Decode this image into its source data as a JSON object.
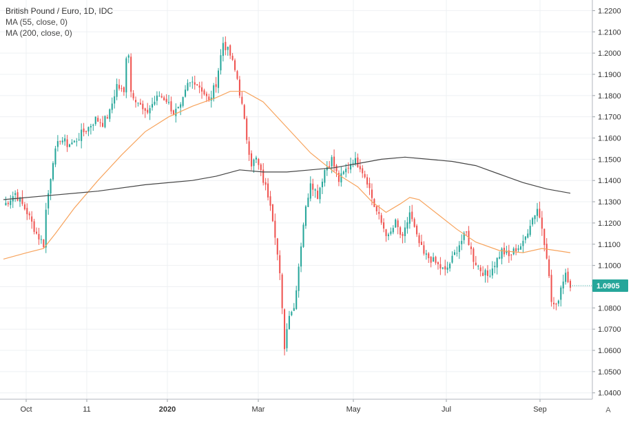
{
  "chart_data": {
    "type": "candlestick",
    "title": "British Pound / Euro, 1D, IDC",
    "indicators": [
      {
        "label": "MA (55, close, 0)",
        "color": "#f7a35c"
      },
      {
        "label": "MA (200, close, 0)",
        "color": "#444444"
      }
    ],
    "ylim": [
      1.037,
      1.225
    ],
    "y_ticks": [
      "1.0400",
      "1.0500",
      "1.0600",
      "1.0700",
      "1.0800",
      "1.0900",
      "1.1000",
      "1.1100",
      "1.1200",
      "1.1300",
      "1.1400",
      "1.1500",
      "1.1600",
      "1.1700",
      "1.1800",
      "1.1900",
      "1.2000",
      "1.2100",
      "1.2200"
    ],
    "x_ticks": [
      "Oct",
      "11",
      "2020",
      "Mar",
      "May",
      "Jul",
      "Sep"
    ],
    "last_price": "1.0905",
    "up_color": "#26a69a",
    "down_color": "#ef5350",
    "grid": true,
    "close_path": [
      [
        0,
        1.128
      ],
      [
        5,
        1.134
      ],
      [
        10,
        1.125
      ],
      [
        14,
        1.115
      ],
      [
        17,
        1.11
      ],
      [
        18,
        1.126
      ],
      [
        21,
        1.15
      ],
      [
        24,
        1.16
      ],
      [
        27,
        1.157
      ],
      [
        30,
        1.158
      ],
      [
        33,
        1.162
      ],
      [
        36,
        1.165
      ],
      [
        39,
        1.169
      ],
      [
        42,
        1.167
      ],
      [
        45,
        1.172
      ],
      [
        48,
        1.185
      ],
      [
        51,
        1.181
      ],
      [
        52,
        1.199
      ],
      [
        53,
        1.2
      ],
      [
        54,
        1.182
      ],
      [
        57,
        1.177
      ],
      [
        60,
        1.171
      ],
      [
        63,
        1.176
      ],
      [
        66,
        1.18
      ],
      [
        69,
        1.178
      ],
      [
        72,
        1.172
      ],
      [
        75,
        1.174
      ],
      [
        78,
        1.185
      ],
      [
        81,
        1.187
      ],
      [
        84,
        1.183
      ],
      [
        87,
        1.177
      ],
      [
        90,
        1.186
      ],
      [
        93,
        1.205
      ],
      [
        96,
        1.199
      ],
      [
        99,
        1.188
      ],
      [
        101,
        1.175
      ],
      [
        103,
        1.16
      ],
      [
        105,
        1.148
      ],
      [
        107,
        1.15
      ],
      [
        110,
        1.14
      ],
      [
        113,
        1.13
      ],
      [
        115,
        1.115
      ],
      [
        117,
        1.095
      ],
      [
        119,
        1.062
      ],
      [
        121,
        1.078
      ],
      [
        123,
        1.08
      ],
      [
        125,
        1.1
      ],
      [
        127,
        1.12
      ],
      [
        130,
        1.14
      ],
      [
        133,
        1.133
      ],
      [
        136,
        1.145
      ],
      [
        139,
        1.15
      ],
      [
        142,
        1.14
      ],
      [
        145,
        1.145
      ],
      [
        148,
        1.15
      ],
      [
        151,
        1.147
      ],
      [
        154,
        1.14
      ],
      [
        157,
        1.128
      ],
      [
        160,
        1.12
      ],
      [
        163,
        1.113
      ],
      [
        166,
        1.12
      ],
      [
        169,
        1.112
      ],
      [
        172,
        1.125
      ],
      [
        175,
        1.113
      ],
      [
        178,
        1.105
      ],
      [
        181,
        1.103
      ],
      [
        184,
        1.1
      ],
      [
        187,
        1.097
      ],
      [
        190,
        1.103
      ],
      [
        193,
        1.11
      ],
      [
        196,
        1.115
      ],
      [
        199,
        1.103
      ],
      [
        202,
        1.098
      ],
      [
        205,
        1.095
      ],
      [
        208,
        1.101
      ],
      [
        211,
        1.107
      ],
      [
        214,
        1.104
      ],
      [
        217,
        1.108
      ],
      [
        220,
        1.11
      ],
      [
        223,
        1.12
      ],
      [
        226,
        1.127
      ],
      [
        228,
        1.118
      ],
      [
        230,
        1.105
      ],
      [
        232,
        1.083
      ],
      [
        234,
        1.08
      ],
      [
        236,
        1.09
      ],
      [
        238,
        1.097
      ],
      [
        240,
        1.091
      ]
    ],
    "ma55": [
      [
        0,
        1.103
      ],
      [
        10,
        1.106
      ],
      [
        17,
        1.108
      ],
      [
        22,
        1.115
      ],
      [
        30,
        1.127
      ],
      [
        40,
        1.14
      ],
      [
        50,
        1.152
      ],
      [
        60,
        1.163
      ],
      [
        70,
        1.17
      ],
      [
        80,
        1.175
      ],
      [
        90,
        1.179
      ],
      [
        96,
        1.182
      ],
      [
        102,
        1.182
      ],
      [
        110,
        1.177
      ],
      [
        120,
        1.165
      ],
      [
        130,
        1.153
      ],
      [
        140,
        1.144
      ],
      [
        150,
        1.137
      ],
      [
        156,
        1.13
      ],
      [
        162,
        1.125
      ],
      [
        168,
        1.129
      ],
      [
        172,
        1.132
      ],
      [
        176,
        1.131
      ],
      [
        184,
        1.124
      ],
      [
        192,
        1.117
      ],
      [
        200,
        1.111
      ],
      [
        210,
        1.107
      ],
      [
        220,
        1.106
      ],
      [
        228,
        1.108
      ],
      [
        234,
        1.107
      ],
      [
        240,
        1.106
      ]
    ],
    "ma200": [
      [
        0,
        1.131
      ],
      [
        20,
        1.133
      ],
      [
        40,
        1.135
      ],
      [
        60,
        1.138
      ],
      [
        80,
        1.14
      ],
      [
        90,
        1.142
      ],
      [
        100,
        1.145
      ],
      [
        110,
        1.144
      ],
      [
        120,
        1.144
      ],
      [
        130,
        1.145
      ],
      [
        140,
        1.146
      ],
      [
        150,
        1.148
      ],
      [
        160,
        1.15
      ],
      [
        170,
        1.151
      ],
      [
        180,
        1.15
      ],
      [
        190,
        1.149
      ],
      [
        200,
        1.147
      ],
      [
        210,
        1.143
      ],
      [
        220,
        1.139
      ],
      [
        230,
        1.136
      ],
      [
        240,
        1.134
      ]
    ]
  },
  "controls": {
    "auto_label": "A"
  }
}
